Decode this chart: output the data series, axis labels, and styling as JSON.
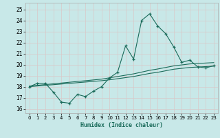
{
  "xlabel": "Humidex (Indice chaleur)",
  "bg_color": "#c8e8e8",
  "grid_color": "#b8d8d8",
  "line_color": "#1a6b5a",
  "xlim": [
    -0.5,
    23.5
  ],
  "ylim": [
    15.6,
    25.6
  ],
  "xticks": [
    0,
    1,
    2,
    3,
    4,
    5,
    6,
    7,
    8,
    9,
    10,
    11,
    12,
    13,
    14,
    15,
    16,
    17,
    18,
    19,
    20,
    21,
    22,
    23
  ],
  "yticks": [
    16,
    17,
    18,
    19,
    20,
    21,
    22,
    23,
    24,
    25
  ],
  "series1_x": [
    0,
    1,
    2,
    3,
    4,
    5,
    6,
    7,
    8,
    9,
    10,
    11,
    12,
    13,
    14,
    15,
    16,
    17,
    18,
    19,
    20,
    21,
    22,
    23
  ],
  "series1_y": [
    18.0,
    18.3,
    18.3,
    17.5,
    16.6,
    16.5,
    17.3,
    17.1,
    17.6,
    18.0,
    18.8,
    19.3,
    21.7,
    20.5,
    24.0,
    24.6,
    23.5,
    22.8,
    21.6,
    20.2,
    20.4,
    19.8,
    19.7,
    19.9
  ],
  "series2_x": [
    0,
    1,
    2,
    3,
    4,
    5,
    6,
    7,
    8,
    9,
    10,
    11,
    12,
    13,
    14,
    15,
    16,
    17,
    18,
    19,
    20,
    21,
    22,
    23
  ],
  "series2_y": [
    18.05,
    18.12,
    18.19,
    18.26,
    18.33,
    18.4,
    18.47,
    18.54,
    18.61,
    18.68,
    18.8,
    18.92,
    19.04,
    19.16,
    19.32,
    19.48,
    19.6,
    19.74,
    19.88,
    19.97,
    20.06,
    20.1,
    20.14,
    20.18
  ],
  "series3_x": [
    0,
    1,
    2,
    3,
    4,
    5,
    6,
    7,
    8,
    9,
    10,
    11,
    12,
    13,
    14,
    15,
    16,
    17,
    18,
    19,
    20,
    21,
    22,
    23
  ],
  "series3_y": [
    18.0,
    18.06,
    18.12,
    18.18,
    18.24,
    18.3,
    18.36,
    18.42,
    18.48,
    18.54,
    18.62,
    18.72,
    18.82,
    18.92,
    19.06,
    19.2,
    19.3,
    19.44,
    19.58,
    19.66,
    19.74,
    19.78,
    19.82,
    19.86
  ]
}
